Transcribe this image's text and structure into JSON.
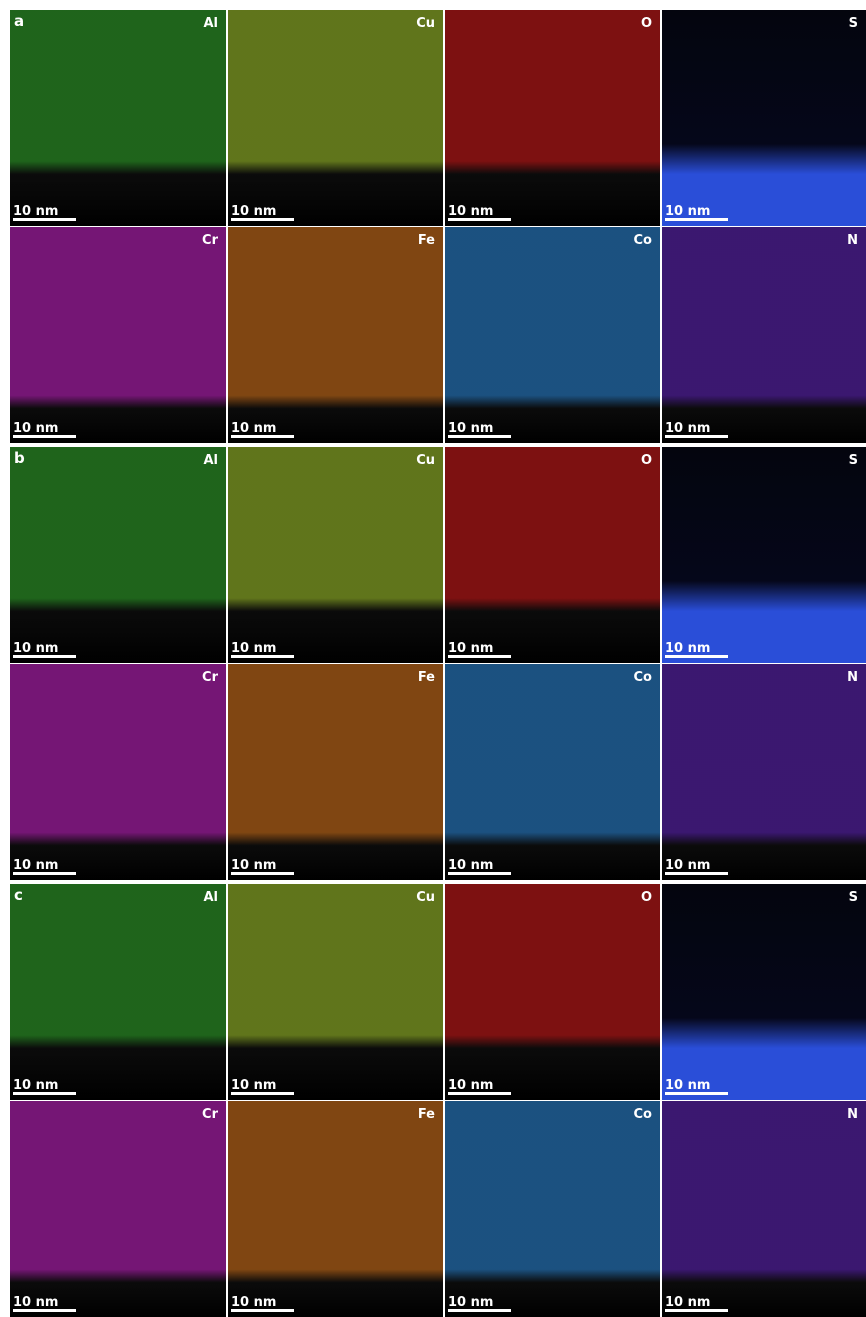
{
  "panels": [
    {
      "label": "a",
      "tiles": [
        {
          "element": "Al",
          "color": "#2f9a2a",
          "scale_bar": "10 nm"
        },
        {
          "element": "Cu",
          "color": "#93b32a",
          "scale_bar": "10 nm"
        },
        {
          "element": "O",
          "color": "#c01a1a",
          "scale_bar": "10 nm"
        },
        {
          "element": "S",
          "color": "#2a4ed8",
          "scale_bar": "10 nm"
        },
        {
          "element": "Cr",
          "color": "#b322b3",
          "scale_bar": "10 nm"
        },
        {
          "element": "Fe",
          "color": "#c46c1c",
          "scale_bar": "10 nm"
        },
        {
          "element": "Co",
          "color": "#2a7cc4",
          "scale_bar": "10 nm"
        },
        {
          "element": "N",
          "color": "#5a24ac",
          "scale_bar": "10 nm"
        }
      ]
    },
    {
      "label": "b",
      "tiles": [
        {
          "element": "Al",
          "color": "#2f9a2a",
          "scale_bar": "10 nm"
        },
        {
          "element": "Cu",
          "color": "#93b32a",
          "scale_bar": "10 nm"
        },
        {
          "element": "O",
          "color": "#c01a1a",
          "scale_bar": "10 nm"
        },
        {
          "element": "S",
          "color": "#2a4ed8",
          "scale_bar": "10 nm"
        },
        {
          "element": "Cr",
          "color": "#b322b3",
          "scale_bar": "10 nm"
        },
        {
          "element": "Fe",
          "color": "#c46c1c",
          "scale_bar": "10 nm"
        },
        {
          "element": "Co",
          "color": "#2a7cc4",
          "scale_bar": "10 nm"
        },
        {
          "element": "N",
          "color": "#5a24ac",
          "scale_bar": "10 nm"
        }
      ]
    },
    {
      "label": "c",
      "tiles": [
        {
          "element": "Al",
          "color": "#2f9a2a",
          "scale_bar": "10 nm"
        },
        {
          "element": "Cu",
          "color": "#93b32a",
          "scale_bar": "10 nm"
        },
        {
          "element": "O",
          "color": "#c01a1a",
          "scale_bar": "10 nm"
        },
        {
          "element": "S",
          "color": "#2a4ed8",
          "scale_bar": "10 nm"
        },
        {
          "element": "Cr",
          "color": "#b322b3",
          "scale_bar": "10 nm"
        },
        {
          "element": "Fe",
          "color": "#c46c1c",
          "scale_bar": "10 nm"
        },
        {
          "element": "Co",
          "color": "#2a7cc4",
          "scale_bar": "10 nm"
        },
        {
          "element": "N",
          "color": "#5a24ac",
          "scale_bar": "10 nm"
        }
      ]
    }
  ]
}
